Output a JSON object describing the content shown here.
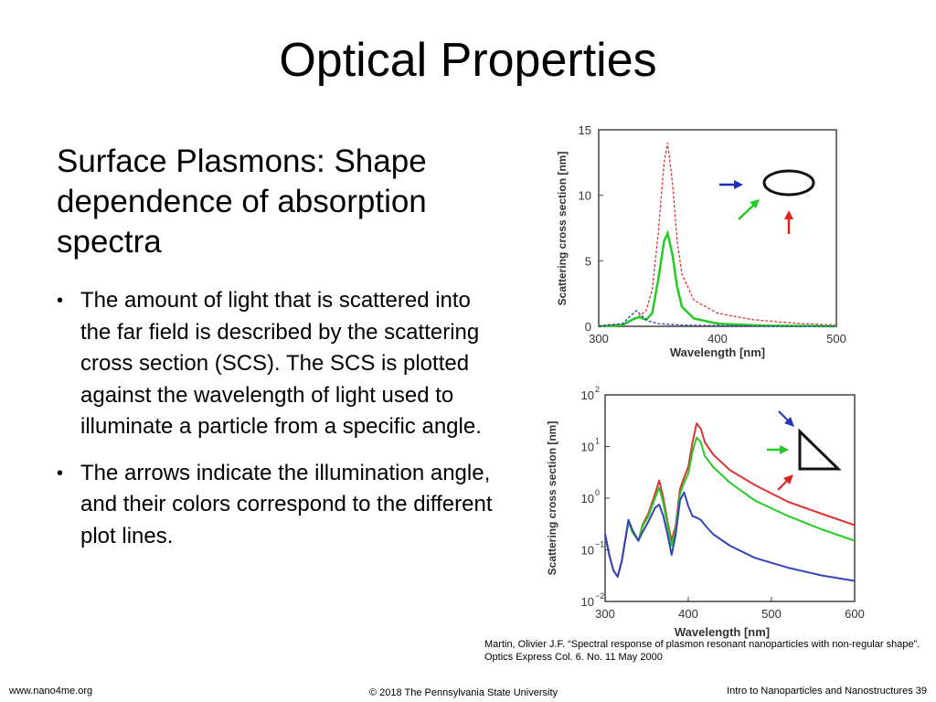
{
  "slide": {
    "title": "Optical Properties",
    "subtitle": "Surface Plasmons: Shape dependence of absorption spectra",
    "bullets": [
      "The amount of light that is scattered into the far field is described by the scattering cross section (SCS).  The SCS is plotted against the wavelength of light used to illuminate a particle from a specific angle.",
      "The arrows indicate the illumination angle, and their colors correspond to the different plot lines."
    ],
    "citation": "Martin, Olivier J.F.  “Spectral response of plasmon resonant nanoparticles with non-regular shape”.  Optics Express Col. 6. No. 11 May 2000",
    "footer": {
      "left": "www.nano4me.org",
      "center": "© 2018 The Pennsylvania State University",
      "right": "Intro to Nanoparticles and Nanostructures 39"
    }
  },
  "chart_data": [
    {
      "type": "line",
      "xlabel": "Wavelength [nm]",
      "ylabel": "Scattering cross section [nm]",
      "xlim": [
        300,
        500
      ],
      "ylim": [
        0,
        15
      ],
      "x_ticks": [
        "300",
        "400",
        "500"
      ],
      "y_ticks": [
        "0",
        "5",
        "10",
        "15"
      ],
      "shape": "ellipse",
      "arrows": [
        "blue",
        "green",
        "red"
      ],
      "series": [
        {
          "color": "#dd3333",
          "style": "dashed",
          "x": [
            300,
            320,
            330,
            340,
            345,
            350,
            355,
            358,
            362,
            366,
            370,
            380,
            400,
            430,
            470,
            500
          ],
          "y": [
            0.05,
            0.2,
            0.5,
            1.2,
            2.8,
            7.0,
            12.5,
            14.0,
            11.0,
            6.5,
            4.0,
            2.0,
            1.0,
            0.5,
            0.2,
            0.1
          ]
        },
        {
          "color": "#22cc22",
          "style": "solid",
          "x": [
            300,
            320,
            330,
            334,
            340,
            345,
            350,
            355,
            358,
            362,
            366,
            370,
            380,
            400,
            440,
            500
          ],
          "y": [
            0.0,
            0.1,
            0.6,
            0.7,
            0.5,
            1.0,
            3.5,
            6.5,
            7.1,
            5.5,
            3.0,
            1.5,
            0.6,
            0.2,
            0.05,
            0.0
          ]
        },
        {
          "color": "#3333bb",
          "style": "dashed",
          "x": [
            300,
            320,
            328,
            332,
            336,
            342,
            350,
            370,
            400,
            450,
            500
          ],
          "y": [
            0.0,
            0.2,
            0.9,
            1.2,
            0.8,
            0.4,
            0.2,
            0.1,
            0.05,
            0.0,
            0.0
          ]
        }
      ]
    },
    {
      "type": "line",
      "xlabel": "Wavelength [nm]",
      "ylabel": "Scattering cross section [nm]",
      "xlim": [
        300,
        600
      ],
      "ylim": [
        0.01,
        100
      ],
      "yscale": "log",
      "x_ticks": [
        "300",
        "400",
        "500",
        "600"
      ],
      "y_ticks": [
        {
          "base": "10",
          "exp": "2",
          "value": 100
        },
        {
          "base": "10",
          "exp": "1",
          "value": 10
        },
        {
          "base": "10",
          "exp": "0",
          "value": 1
        },
        {
          "base": "10",
          "exp": "−1",
          "value": 0.1
        },
        {
          "base": "10",
          "exp": "−2",
          "value": 0.01
        }
      ],
      "shape": "triangle",
      "arrows": [
        "blue",
        "green",
        "red"
      ],
      "series": [
        {
          "color": "#dd3333",
          "x": [
            300,
            305,
            310,
            315,
            320,
            328,
            333,
            340,
            345,
            352,
            360,
            365,
            370,
            375,
            380,
            385,
            390,
            395,
            400,
            405,
            410,
            415,
            420,
            430,
            450,
            480,
            520,
            560,
            600
          ],
          "y": [
            0.2,
            0.08,
            0.04,
            0.03,
            0.06,
            0.35,
            0.22,
            0.15,
            0.3,
            0.5,
            1.2,
            2.2,
            1.0,
            0.35,
            0.15,
            0.3,
            1.5,
            2.5,
            4.0,
            12.0,
            28.0,
            22.0,
            12.0,
            7.0,
            3.5,
            1.8,
            0.85,
            0.5,
            0.3
          ]
        },
        {
          "color": "#22cc22",
          "x": [
            300,
            305,
            310,
            315,
            320,
            328,
            333,
            340,
            345,
            352,
            360,
            365,
            370,
            375,
            380,
            385,
            390,
            395,
            400,
            405,
            410,
            415,
            420,
            430,
            450,
            480,
            520,
            560,
            600
          ],
          "y": [
            0.2,
            0.08,
            0.04,
            0.03,
            0.06,
            0.35,
            0.22,
            0.15,
            0.28,
            0.45,
            1.0,
            1.6,
            0.8,
            0.3,
            0.12,
            0.25,
            1.2,
            2.0,
            3.0,
            8.0,
            15.0,
            12.0,
            6.5,
            4.0,
            2.0,
            0.9,
            0.45,
            0.25,
            0.15
          ]
        },
        {
          "color": "#3344bb",
          "x": [
            300,
            305,
            310,
            315,
            320,
            328,
            333,
            340,
            345,
            352,
            360,
            365,
            370,
            375,
            380,
            385,
            390,
            395,
            400,
            405,
            410,
            415,
            420,
            430,
            450,
            480,
            520,
            560,
            600
          ],
          "y": [
            0.2,
            0.08,
            0.04,
            0.03,
            0.06,
            0.38,
            0.24,
            0.15,
            0.22,
            0.35,
            0.65,
            0.75,
            0.45,
            0.2,
            0.08,
            0.2,
            0.9,
            1.3,
            0.7,
            0.45,
            0.42,
            0.38,
            0.3,
            0.2,
            0.12,
            0.07,
            0.045,
            0.032,
            0.025
          ]
        }
      ]
    }
  ]
}
